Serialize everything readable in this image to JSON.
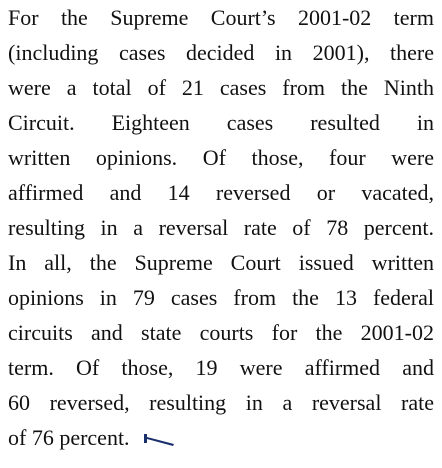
{
  "paragraph": {
    "lines": [
      "For the Supreme Court’s 2001-02 term",
      "(including cases decided in 2001), there",
      "were a total of 21 cases from the Ninth",
      "Circuit. Eighteen cases resulted in",
      "written opinions. Of those, four were",
      "affirmed and 14 reversed or vacated,",
      "resulting in a reversal rate of 78 percent.",
      "In all, the Supreme Court issued written",
      "opinions in 79 cases from the 13 federal",
      "circuits and state courts for the 2001-02",
      "term. Of those, 19 were affirmed and",
      "60 reversed, resulting in a reversal rate",
      "of 76 percent."
    ]
  }
}
